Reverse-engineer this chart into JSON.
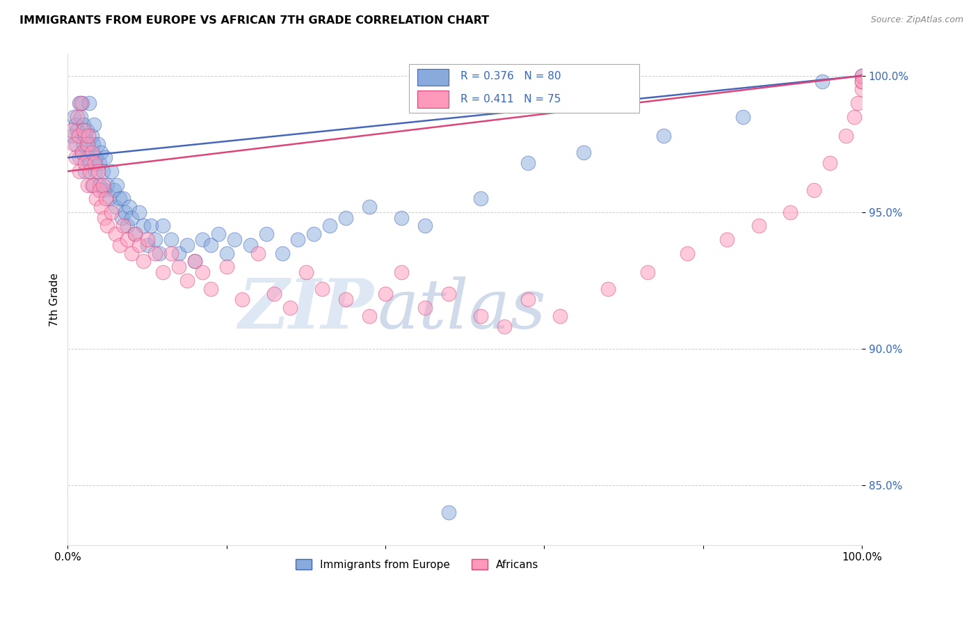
{
  "title": "IMMIGRANTS FROM EUROPE VS AFRICAN 7TH GRADE CORRELATION CHART",
  "source": "Source: ZipAtlas.com",
  "ylabel": "7th Grade",
  "legend_label1": "Immigrants from Europe",
  "legend_label2": "Africans",
  "R1": 0.376,
  "N1": 80,
  "R2": 0.411,
  "N2": 75,
  "color_blue": "#88AADD",
  "color_pink": "#FF99BB",
  "color_blue_line": "#4466BB",
  "color_pink_line": "#DD4477",
  "color_label": "#3366CC",
  "xlim": [
    0.0,
    1.0
  ],
  "ylim": [
    0.828,
    1.008
  ],
  "yticks": [
    0.85,
    0.9,
    0.95,
    1.0
  ],
  "ytick_labels": [
    "85.0%",
    "90.0%",
    "95.0%",
    "100.0%"
  ],
  "watermark_zip": "ZIP",
  "watermark_atlas": "atlas",
  "blue_x": [
    0.005,
    0.008,
    0.01,
    0.01,
    0.012,
    0.015,
    0.015,
    0.016,
    0.018,
    0.018,
    0.02,
    0.02,
    0.022,
    0.022,
    0.024,
    0.025,
    0.026,
    0.027,
    0.028,
    0.03,
    0.03,
    0.032,
    0.033,
    0.035,
    0.036,
    0.038,
    0.04,
    0.04,
    0.042,
    0.044,
    0.045,
    0.047,
    0.05,
    0.052,
    0.055,
    0.058,
    0.06,
    0.062,
    0.065,
    0.068,
    0.07,
    0.072,
    0.075,
    0.078,
    0.08,
    0.085,
    0.09,
    0.095,
    0.1,
    0.105,
    0.11,
    0.115,
    0.12,
    0.13,
    0.14,
    0.15,
    0.16,
    0.17,
    0.18,
    0.19,
    0.2,
    0.21,
    0.23,
    0.25,
    0.27,
    0.29,
    0.31,
    0.33,
    0.35,
    0.38,
    0.42,
    0.45,
    0.48,
    0.52,
    0.58,
    0.65,
    0.75,
    0.85,
    0.95,
    1.0
  ],
  "blue_y": [
    0.978,
    0.985,
    0.982,
    0.975,
    0.98,
    0.99,
    0.97,
    0.985,
    0.972,
    0.99,
    0.982,
    0.975,
    0.978,
    0.965,
    0.98,
    0.97,
    0.975,
    0.99,
    0.968,
    0.978,
    0.96,
    0.975,
    0.982,
    0.965,
    0.97,
    0.975,
    0.968,
    0.96,
    0.972,
    0.965,
    0.958,
    0.97,
    0.96,
    0.955,
    0.965,
    0.958,
    0.952,
    0.96,
    0.955,
    0.948,
    0.955,
    0.95,
    0.945,
    0.952,
    0.948,
    0.942,
    0.95,
    0.945,
    0.938,
    0.945,
    0.94,
    0.935,
    0.945,
    0.94,
    0.935,
    0.938,
    0.932,
    0.94,
    0.938,
    0.942,
    0.935,
    0.94,
    0.938,
    0.942,
    0.935,
    0.94,
    0.942,
    0.945,
    0.948,
    0.952,
    0.948,
    0.945,
    0.84,
    0.955,
    0.968,
    0.972,
    0.978,
    0.985,
    0.998,
    1.0
  ],
  "pink_x": [
    0.005,
    0.008,
    0.01,
    0.012,
    0.014,
    0.015,
    0.016,
    0.018,
    0.02,
    0.022,
    0.024,
    0.025,
    0.026,
    0.028,
    0.03,
    0.032,
    0.034,
    0.036,
    0.038,
    0.04,
    0.042,
    0.044,
    0.046,
    0.048,
    0.05,
    0.055,
    0.06,
    0.065,
    0.07,
    0.075,
    0.08,
    0.085,
    0.09,
    0.095,
    0.1,
    0.11,
    0.12,
    0.13,
    0.14,
    0.15,
    0.16,
    0.17,
    0.18,
    0.2,
    0.22,
    0.24,
    0.26,
    0.28,
    0.3,
    0.32,
    0.35,
    0.38,
    0.4,
    0.42,
    0.45,
    0.48,
    0.52,
    0.55,
    0.58,
    0.62,
    0.68,
    0.73,
    0.78,
    0.83,
    0.87,
    0.91,
    0.94,
    0.96,
    0.98,
    0.99,
    0.995,
    1.0,
    1.0,
    1.0,
    1.0
  ],
  "pink_y": [
    0.98,
    0.975,
    0.97,
    0.985,
    0.978,
    0.965,
    0.99,
    0.972,
    0.98,
    0.968,
    0.975,
    0.96,
    0.978,
    0.965,
    0.972,
    0.96,
    0.968,
    0.955,
    0.965,
    0.958,
    0.952,
    0.96,
    0.948,
    0.955,
    0.945,
    0.95,
    0.942,
    0.938,
    0.945,
    0.94,
    0.935,
    0.942,
    0.938,
    0.932,
    0.94,
    0.935,
    0.928,
    0.935,
    0.93,
    0.925,
    0.932,
    0.928,
    0.922,
    0.93,
    0.918,
    0.935,
    0.92,
    0.915,
    0.928,
    0.922,
    0.918,
    0.912,
    0.92,
    0.928,
    0.915,
    0.92,
    0.912,
    0.908,
    0.918,
    0.912,
    0.922,
    0.928,
    0.935,
    0.94,
    0.945,
    0.95,
    0.958,
    0.968,
    0.978,
    0.985,
    0.99,
    0.995,
    0.998,
    1.0,
    0.998
  ]
}
